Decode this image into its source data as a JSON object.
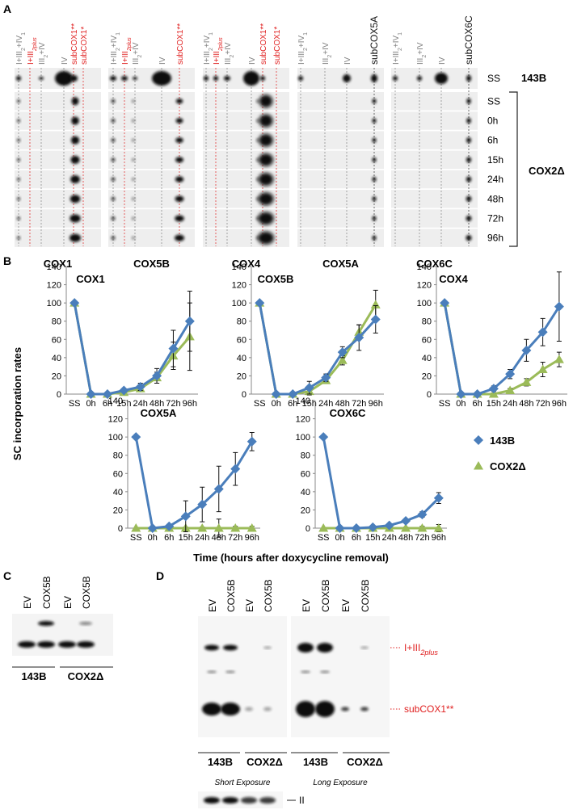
{
  "panel_a": {
    "label": "A",
    "blots": [
      {
        "name": "COX1",
        "lanes": [
          {
            "parts": [
              "I+III",
              "2",
              "+IV",
              "1"
            ],
            "color": "#808080"
          },
          {
            "parts": [
              "I+III",
              "2plus"
            ],
            "color": "#e02020",
            "italic_sub": true
          },
          {
            "parts": [
              "III",
              "2",
              "+IV"
            ],
            "color": "#808080"
          },
          {
            "parts": [
              "IV"
            ],
            "color": "#808080"
          },
          {
            "parts": [
              "subCOX1**"
            ],
            "color": "#e02020"
          },
          {
            "parts": [
              "subCOX1*"
            ],
            "color": "#e02020"
          }
        ]
      },
      {
        "name": "COX5B",
        "lanes": [
          {
            "parts": [
              "I+III",
              "2",
              "+IV",
              "1"
            ],
            "color": "#808080"
          },
          {
            "parts": [
              "I+III",
              "2plus"
            ],
            "color": "#e02020",
            "italic_sub": true
          },
          {
            "parts": [
              "III",
              "2",
              "+IV"
            ],
            "color": "#808080"
          },
          {
            "parts": [
              "IV"
            ],
            "color": "#808080"
          },
          {
            "parts": [
              "subCOX1**"
            ],
            "color": "#e02020"
          }
        ]
      },
      {
        "name": "COX4",
        "lanes": [
          {
            "parts": [
              "I+III",
              "2",
              "+IV",
              "1"
            ],
            "color": "#808080"
          },
          {
            "parts": [
              "I+III",
              "2plus"
            ],
            "color": "#e02020",
            "italic_sub": true
          },
          {
            "parts": [
              "III",
              "2",
              "+IV"
            ],
            "color": "#808080"
          },
          {
            "parts": [
              "IV"
            ],
            "color": "#808080"
          },
          {
            "parts": [
              "subCOX1**"
            ],
            "color": "#e02020"
          },
          {
            "parts": [
              "subCOX1*"
            ],
            "color": "#e02020"
          }
        ]
      },
      {
        "name": "COX5A",
        "lanes": [
          {
            "parts": [
              "I+III",
              "2",
              "+IV",
              "1"
            ],
            "color": "#808080"
          },
          {
            "parts": [
              "III",
              "2",
              "+IV"
            ],
            "color": "#808080"
          },
          {
            "parts": [
              "IV"
            ],
            "color": "#808080"
          },
          {
            "parts": [
              "subCOX5A"
            ],
            "color": "#111111"
          }
        ]
      },
      {
        "name": "COX6C",
        "lanes": [
          {
            "parts": [
              "I+III",
              "2",
              "+IV",
              "1"
            ],
            "color": "#808080"
          },
          {
            "parts": [
              "III",
              "2",
              "+IV"
            ],
            "color": "#808080"
          },
          {
            "parts": [
              "IV"
            ],
            "color": "#808080"
          },
          {
            "parts": [
              "subCOX6C"
            ],
            "color": "#111111"
          }
        ]
      }
    ],
    "rows": [
      "SS",
      "SS",
      "0h",
      "6h",
      "15h",
      "24h",
      "48h",
      "72h",
      "96h"
    ],
    "groups": [
      "143B",
      "COX2Δ"
    ]
  },
  "panel_b": {
    "label": "B",
    "y_label": "SC incorporation rates",
    "x_label": "Time (hours after doxycycline removal)"
  },
  "chart_data": [
    {
      "type": "line",
      "title": "COX1",
      "categories": [
        "SS",
        "0h",
        "6h",
        "15h",
        "24h",
        "48h",
        "72h",
        "96h"
      ],
      "series": [
        {
          "color": "#4a7ebb",
          "marker": "diamond",
          "values": [
            100,
            0,
            0,
            4,
            8,
            20,
            50,
            80
          ],
          "errors": [
            0,
            0,
            1,
            2,
            4,
            8,
            20,
            33
          ]
        },
        {
          "color": "#9bbb59",
          "marker": "triangle",
          "values": [
            100,
            0,
            0,
            2,
            6,
            18,
            42,
            63
          ],
          "errors": [
            0,
            0,
            1,
            2,
            3,
            6,
            15,
            37
          ]
        }
      ],
      "ylim": [
        0,
        140
      ],
      "yticks": [
        0,
        20,
        40,
        60,
        80,
        100,
        120,
        140
      ]
    },
    {
      "type": "line",
      "title": "COX5B",
      "categories": [
        "SS",
        "0h",
        "6h",
        "15h",
        "24h",
        "48h",
        "72h",
        "96h"
      ],
      "series": [
        {
          "color": "#4a7ebb",
          "marker": "diamond",
          "values": [
            100,
            0,
            0,
            7,
            18,
            46,
            62,
            82
          ],
          "errors": [
            0,
            0,
            2,
            7,
            4,
            6,
            14,
            15
          ]
        },
        {
          "color": "#9bbb59",
          "marker": "triangle",
          "values": [
            100,
            0,
            0,
            3,
            15,
            37,
            68,
            98
          ],
          "errors": [
            0,
            0,
            2,
            4,
            3,
            5,
            8,
            16
          ]
        }
      ],
      "ylim": [
        0,
        140
      ],
      "yticks": [
        0,
        20,
        40,
        60,
        80,
        100,
        120,
        140
      ]
    },
    {
      "type": "line",
      "title": "COX4",
      "categories": [
        "SS",
        "0h",
        "6h",
        "15h",
        "24h",
        "48h",
        "72h",
        "96h"
      ],
      "series": [
        {
          "color": "#4a7ebb",
          "marker": "diamond",
          "values": [
            100,
            0,
            0,
            6,
            22,
            48,
            68,
            96
          ],
          "errors": [
            0,
            0,
            1,
            3,
            5,
            12,
            15,
            38
          ]
        },
        {
          "color": "#9bbb59",
          "marker": "triangle",
          "values": [
            100,
            0,
            0,
            0,
            4,
            13,
            27,
            38
          ],
          "errors": [
            0,
            0,
            0,
            1,
            2,
            4,
            8,
            8
          ]
        }
      ],
      "ylim": [
        0,
        140
      ],
      "yticks": [
        0,
        20,
        40,
        60,
        80,
        100,
        120,
        140
      ]
    },
    {
      "type": "line",
      "title": "COX5A",
      "categories": [
        "SS",
        "0h",
        "6h",
        "15h",
        "24h",
        "48h",
        "72h",
        "96h"
      ],
      "series": [
        {
          "color": "#4a7ebb",
          "marker": "diamond",
          "values": [
            100,
            0,
            2,
            13,
            26,
            43,
            65,
            95
          ],
          "errors": [
            0,
            0,
            2,
            17,
            19,
            25,
            18,
            10
          ]
        },
        {
          "color": "#9bbb59",
          "marker": "triangle",
          "values": [
            0,
            0,
            0,
            0,
            0,
            0,
            0,
            0
          ],
          "errors": [
            0,
            0,
            1,
            1,
            1,
            10,
            2,
            2
          ]
        }
      ],
      "ylim": [
        0,
        140
      ],
      "yticks": [
        0,
        20,
        40,
        60,
        80,
        100,
        120,
        140
      ]
    },
    {
      "type": "line",
      "title": "COX6C",
      "categories": [
        "SS",
        "0h",
        "6h",
        "15h",
        "24h",
        "48h",
        "72h",
        "96h"
      ],
      "series": [
        {
          "name": "143B",
          "color": "#4a7ebb",
          "marker": "diamond",
          "values": [
            100,
            0,
            0,
            1,
            3,
            8,
            15,
            33
          ],
          "errors": [
            0,
            0,
            0,
            1,
            1,
            2,
            3,
            6
          ]
        },
        {
          "name": "COX2Δ",
          "color": "#9bbb59",
          "marker": "triangle",
          "values": [
            0,
            0,
            0,
            0,
            0,
            0,
            0,
            0
          ],
          "errors": [
            0,
            0,
            1,
            1,
            1,
            1,
            2,
            4
          ]
        }
      ],
      "ylim": [
        0,
        140
      ],
      "yticks": [
        0,
        20,
        40,
        60,
        80,
        100,
        120,
        140
      ],
      "legend": "right"
    }
  ],
  "panel_c": {
    "label": "C",
    "lanes": [
      "EV",
      "COX5B",
      "EV",
      "COX5B"
    ],
    "groups": [
      "143B",
      "COX2Δ"
    ]
  },
  "panel_d": {
    "label": "D",
    "blots": [
      {
        "lanes": [
          "EV",
          "COX5B",
          "EV",
          "COX5B"
        ],
        "groups": [
          "143B",
          "COX2Δ"
        ],
        "exposure": "Short Exposure"
      },
      {
        "lanes": [
          "EV",
          "COX5B",
          "EV",
          "COX5B"
        ],
        "groups": [
          "143B",
          "COX2Δ"
        ],
        "exposure": "Long Exposure"
      }
    ],
    "bands": [
      {
        "parts": [
          "I+III",
          "2plus"
        ],
        "italic_sub": true
      },
      {
        "parts": [
          "subCOX1**"
        ]
      }
    ],
    "loading": "II"
  }
}
